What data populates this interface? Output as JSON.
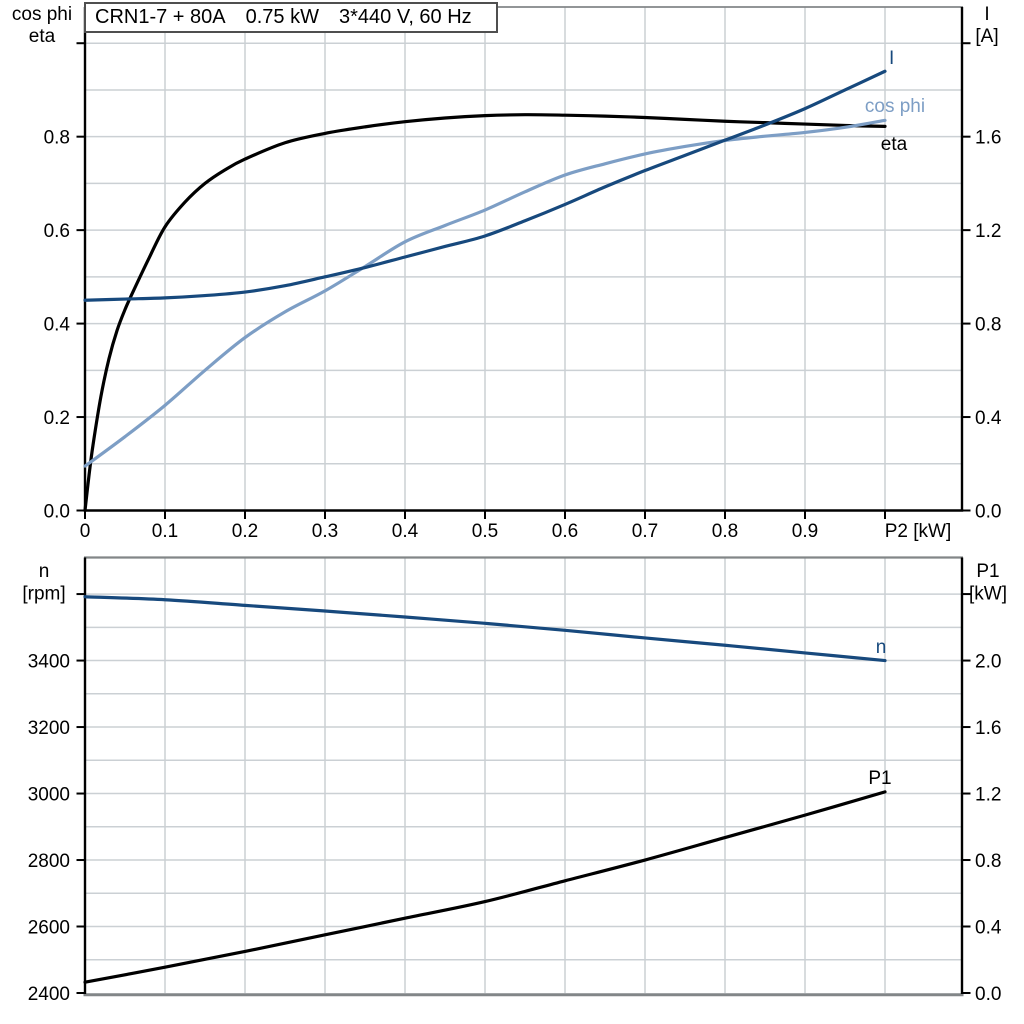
{
  "title_box": {
    "segments": [
      "CRN1-7 + 80A",
      "0.75 kW",
      "3*440 V, 60 Hz"
    ]
  },
  "colors": {
    "dark_blue": "#17497d",
    "light_blue": "#7d9ec5",
    "black": "#000000",
    "grid": "#cbd0d4",
    "frame": "#828688",
    "background": "#ffffff"
  },
  "chart_data": [
    {
      "type": "line",
      "name": "motor-electrical-curves",
      "x_axis": {
        "label": "P2 [kW]",
        "min": 0,
        "max": 1.09625,
        "tick_values": [
          0,
          0.1,
          0.2,
          0.3,
          0.4,
          0.5,
          0.6,
          0.7,
          0.8,
          0.9
        ],
        "tick_labels": [
          "0",
          "0.1",
          "0.2",
          "0.3",
          "0.4",
          "0.5",
          "0.6",
          "0.7",
          "0.8",
          "0.9"
        ],
        "unlabeled_ticks": [
          1.0
        ],
        "grid_values": [
          0.1,
          0.2,
          0.3,
          0.4,
          0.5,
          0.6,
          0.7,
          0.8,
          0.9,
          1.0
        ]
      },
      "left_axis": {
        "title_lines": [
          "cos phi",
          "eta"
        ],
        "min": 0,
        "max": 1.0775,
        "tick_values": [
          0,
          0.2,
          0.4,
          0.6,
          0.8
        ],
        "tick_labels": [
          "0.0",
          "0.2",
          "0.4",
          "0.6",
          "0.8"
        ],
        "unlabeled_ticks": [
          1.0
        ],
        "grid_values": [
          0.1,
          0.2,
          0.3,
          0.4,
          0.5,
          0.6,
          0.7,
          0.8,
          0.9,
          1.0
        ]
      },
      "right_axis": {
        "title_lines": [
          "I",
          "[A]"
        ],
        "min": 0,
        "max": 2.155,
        "tick_values": [
          0,
          0.4,
          0.8,
          1.2,
          1.6
        ],
        "tick_labels": [
          "0.0",
          "0.4",
          "0.8",
          "1.2",
          "1.6"
        ],
        "unlabeled_ticks": [
          2.0
        ]
      },
      "series": [
        {
          "name": "eta",
          "axis": "left",
          "color": "#000000",
          "x": [
            0,
            0.005,
            0.01,
            0.02,
            0.03,
            0.04,
            0.05,
            0.06,
            0.08,
            0.1,
            0.125,
            0.15,
            0.175,
            0.2,
            0.25,
            0.3,
            0.35,
            0.4,
            0.45,
            0.5,
            0.55,
            0.6,
            0.65,
            0.7,
            0.75,
            0.8,
            0.85,
            0.9,
            0.95,
            1.0
          ],
          "y": [
            0,
            0.075,
            0.14,
            0.245,
            0.325,
            0.385,
            0.43,
            0.468,
            0.54,
            0.607,
            0.66,
            0.7,
            0.729,
            0.752,
            0.787,
            0.807,
            0.821,
            0.832,
            0.84,
            0.845,
            0.847,
            0.846,
            0.844,
            0.841,
            0.837,
            0.833,
            0.83,
            0.827,
            0.824,
            0.822
          ],
          "label": {
            "text": "eta",
            "x": 894,
            "y": 150,
            "anchor": "middle"
          }
        },
        {
          "name": "cos phi",
          "axis": "left",
          "color": "#7d9ec5",
          "x": [
            0,
            0.05,
            0.1,
            0.15,
            0.2,
            0.25,
            0.3,
            0.35,
            0.4,
            0.45,
            0.5,
            0.55,
            0.6,
            0.65,
            0.7,
            0.75,
            0.8,
            0.85,
            0.9,
            0.95,
            1.0
          ],
          "y": [
            0.095,
            0.158,
            0.225,
            0.3,
            0.37,
            0.425,
            0.47,
            0.522,
            0.575,
            0.61,
            0.643,
            0.682,
            0.718,
            0.742,
            0.763,
            0.779,
            0.792,
            0.801,
            0.809,
            0.82,
            0.835
          ],
          "label": {
            "text": "cos phi",
            "x": 895,
            "y": 112,
            "anchor": "middle"
          }
        },
        {
          "name": "I",
          "axis": "right",
          "color": "#17497d",
          "x": [
            0,
            0.05,
            0.1,
            0.15,
            0.2,
            0.25,
            0.3,
            0.35,
            0.4,
            0.45,
            0.5,
            0.55,
            0.6,
            0.65,
            0.7,
            0.75,
            0.8,
            0.85,
            0.9,
            0.95,
            1.0
          ],
          "y": [
            0.9,
            0.905,
            0.91,
            0.92,
            0.935,
            0.962,
            1.0,
            1.04,
            1.085,
            1.13,
            1.175,
            1.24,
            1.31,
            1.385,
            1.455,
            1.52,
            1.585,
            1.65,
            1.72,
            1.8,
            1.88
          ],
          "label": {
            "text": "I",
            "x": 889,
            "y": 64,
            "anchor": "start"
          }
        }
      ]
    },
    {
      "type": "line",
      "name": "speed-and-input-power-curves",
      "x_axis": {
        "label": "",
        "min": 0,
        "max": 1.09625,
        "tick_values": [],
        "tick_labels": [],
        "unlabeled_ticks": [],
        "grid_values": [
          0.1,
          0.2,
          0.3,
          0.4,
          0.5,
          0.6,
          0.7,
          0.8,
          0.9,
          1.0
        ]
      },
      "left_axis": {
        "title_lines": [
          "n",
          "[rpm]"
        ],
        "min": 2400,
        "max": 3710,
        "tick_values": [
          2400,
          2600,
          2800,
          3000,
          3200,
          3400
        ],
        "tick_labels": [
          "2400",
          "2600",
          "2800",
          "3000",
          "3200",
          "3400"
        ],
        "unlabeled_ticks": [
          3600
        ],
        "grid_values": [
          2500,
          2600,
          2700,
          2800,
          2900,
          3000,
          3100,
          3200,
          3300,
          3400,
          3500,
          3600
        ]
      },
      "right_axis": {
        "title_lines": [
          "P1",
          "[kW]"
        ],
        "min": 0,
        "max": 2.62,
        "tick_values": [
          0,
          0.4,
          0.8,
          1.2,
          1.6,
          2.0
        ],
        "tick_labels": [
          "0.0",
          "0.4",
          "0.8",
          "1.2",
          "1.6",
          "2.0"
        ],
        "unlabeled_ticks": [
          2.4
        ]
      },
      "series": [
        {
          "name": "n",
          "axis": "left",
          "color": "#17497d",
          "x": [
            0,
            0.1,
            0.2,
            0.3,
            0.4,
            0.5,
            0.6,
            0.7,
            0.8,
            0.9,
            1.0
          ],
          "y": [
            3592,
            3583,
            3566,
            3549,
            3531,
            3512,
            3491,
            3468,
            3446,
            3423,
            3400
          ],
          "label": {
            "text": "n",
            "x": 881,
            "y": 653,
            "anchor": "middle"
          }
        },
        {
          "name": "P1",
          "axis": "right",
          "color": "#000000",
          "x": [
            0,
            0.1,
            0.2,
            0.3,
            0.4,
            0.5,
            0.6,
            0.7,
            0.8,
            0.9,
            1.0
          ],
          "y": [
            0.065,
            0.155,
            0.25,
            0.35,
            0.45,
            0.55,
            0.675,
            0.8,
            0.935,
            1.07,
            1.21
          ],
          "label": {
            "text": "P1",
            "x": 880,
            "y": 784,
            "anchor": "middle"
          }
        }
      ]
    }
  ]
}
